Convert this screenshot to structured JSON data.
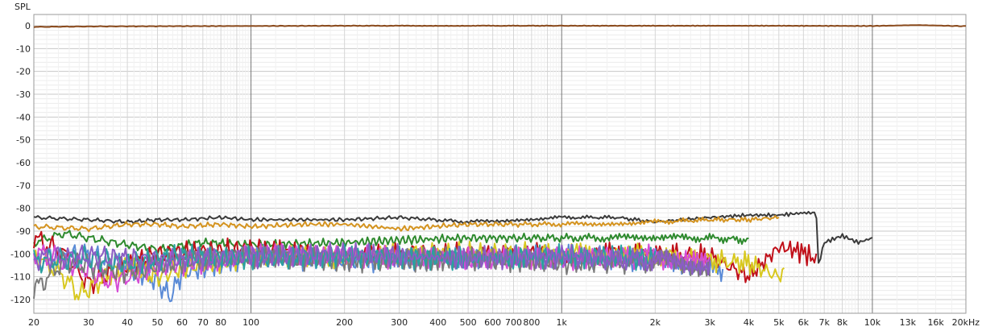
{
  "chart_data": {
    "type": "line",
    "ylabel": "SPL",
    "x_scale": "log",
    "xlim": [
      20,
      20000
    ],
    "ylim": [
      -120,
      0
    ],
    "yticks": [
      0,
      -10,
      -20,
      -30,
      -40,
      -50,
      -60,
      -70,
      -80,
      -90,
      -100,
      -110,
      -120
    ],
    "ytick_labels": [
      "0",
      "-10",
      "-20",
      "-30",
      "-40",
      "-50",
      "-60",
      "-70",
      "-80",
      "-90",
      "-100",
      "-110",
      "-120"
    ],
    "xticks": [
      20,
      30,
      40,
      50,
      60,
      70,
      80,
      100,
      200,
      300,
      400,
      500,
      600,
      700,
      800,
      1000,
      2000,
      3000,
      4000,
      5000,
      6000,
      7000,
      8000,
      10000,
      13000,
      16000,
      20000
    ],
    "xtick_labels": [
      "20",
      "30",
      "40",
      "50",
      "60",
      "70",
      "80",
      "100",
      "200",
      "300",
      "400",
      "500",
      "600",
      "700",
      "800",
      "1k",
      "2k",
      "3k",
      "4k",
      "5k",
      "6k",
      "7k",
      "8k",
      "10k",
      "13k",
      "16k",
      "20kHz"
    ],
    "grid": true,
    "series": [
      {
        "color": "#8a4a1c",
        "x": [
          20,
          30,
          50,
          100,
          200,
          500,
          1000,
          2000,
          5000,
          10000,
          14000,
          20000
        ],
        "y": [
          -0.5,
          -0.3,
          -0.2,
          -0.1,
          0,
          0,
          0,
          0,
          0,
          -0.1,
          0.3,
          -0.2
        ]
      },
      {
        "color": "#3a3a3a",
        "x": [
          20,
          30,
          40,
          50,
          60,
          80,
          100,
          150,
          200,
          300,
          500,
          700,
          1000,
          1500,
          2000,
          3000,
          4000,
          5000,
          6000,
          6600,
          6700,
          7000,
          8000,
          9000,
          10000
        ],
        "y": [
          -84,
          -85,
          -86,
          -85,
          -85,
          -84,
          -85,
          -85,
          -85,
          -84,
          -86,
          -85,
          -84,
          -84,
          -86,
          -84,
          -83,
          -83,
          -82,
          -82,
          -105,
          -95,
          -92,
          -95,
          -93
        ]
      },
      {
        "color": "#d4931f",
        "x": [
          20,
          30,
          40,
          50,
          60,
          80,
          100,
          150,
          200,
          300,
          500,
          1000,
          2000,
          3000,
          4000,
          5000
        ],
        "y": [
          -88,
          -89,
          -87,
          -87,
          -88,
          -87,
          -88,
          -87,
          -87,
          -89,
          -87,
          -87,
          -86,
          -85,
          -85,
          -84
        ]
      },
      {
        "color": "#2e8a2e",
        "x": [
          20,
          25,
          30,
          40,
          50,
          70,
          100,
          200,
          300,
          500,
          1000,
          2000,
          3000,
          4000
        ],
        "y": [
          -95,
          -91,
          -93,
          -96,
          -98,
          -95,
          -96,
          -95,
          -94,
          -93,
          -93,
          -93,
          -93,
          -94
        ]
      },
      {
        "color": "#c0101a",
        "x": [
          20,
          25,
          30,
          40,
          50,
          100,
          200,
          400,
          600,
          1000,
          2000,
          3000,
          4000,
          5000,
          6000,
          6600
        ],
        "y": [
          -93,
          -100,
          -113,
          -105,
          -100,
          -98,
          -101,
          -100,
          -101,
          -100,
          -100,
          -101,
          -110,
          -97,
          -99,
          -103
        ]
      },
      {
        "color": "#5a8ad6",
        "x": [
          20,
          30,
          40,
          50,
          55,
          60,
          100,
          200,
          500,
          1000,
          2000,
          3000,
          3300
        ],
        "y": [
          -103,
          -100,
          -105,
          -112,
          -119,
          -108,
          -101,
          -103,
          -102,
          -101,
          -103,
          -107,
          -110
        ]
      },
      {
        "color": "#d8c820",
        "x": [
          20,
          25,
          28,
          35,
          40,
          50,
          60,
          80,
          100,
          200,
          500,
          1000,
          2000,
          4000,
          5000,
          5200
        ],
        "y": [
          -100,
          -110,
          -118,
          -109,
          -105,
          -110,
          -106,
          -103,
          -101,
          -101,
          -100,
          -100,
          -101,
          -104,
          -110,
          -107
        ]
      },
      {
        "color": "#d54bd5",
        "x": [
          20,
          25,
          30,
          35,
          40,
          50,
          80,
          100,
          200,
          500,
          1000,
          2000,
          3000
        ],
        "y": [
          -99,
          -103,
          -107,
          -112,
          -110,
          -105,
          -103,
          -100,
          -101,
          -102,
          -102,
          -101,
          -105
        ]
      },
      {
        "color": "#7a7a7a",
        "x": [
          20,
          25,
          30,
          40,
          50,
          70,
          100,
          200,
          500,
          1000,
          2000,
          3000
        ],
        "y": [
          -116,
          -103,
          -105,
          -108,
          -105,
          -102,
          -101,
          -103,
          -102,
          -104,
          -103,
          -105
        ]
      },
      {
        "color": "#2aa0a0",
        "x": [
          20,
          30,
          40,
          60,
          100,
          200,
          500,
          1000,
          2000
        ],
        "y": [
          -103,
          -102,
          -104,
          -101,
          -102,
          -101,
          -102,
          -101,
          -102
        ]
      },
      {
        "color": "#8b5cc4",
        "x": [
          20,
          30,
          50,
          100,
          200,
          500,
          1000,
          2000,
          3000
        ],
        "y": [
          -102,
          -101,
          -103,
          -101,
          -100,
          -102,
          -101,
          -103,
          -104
        ]
      }
    ]
  }
}
